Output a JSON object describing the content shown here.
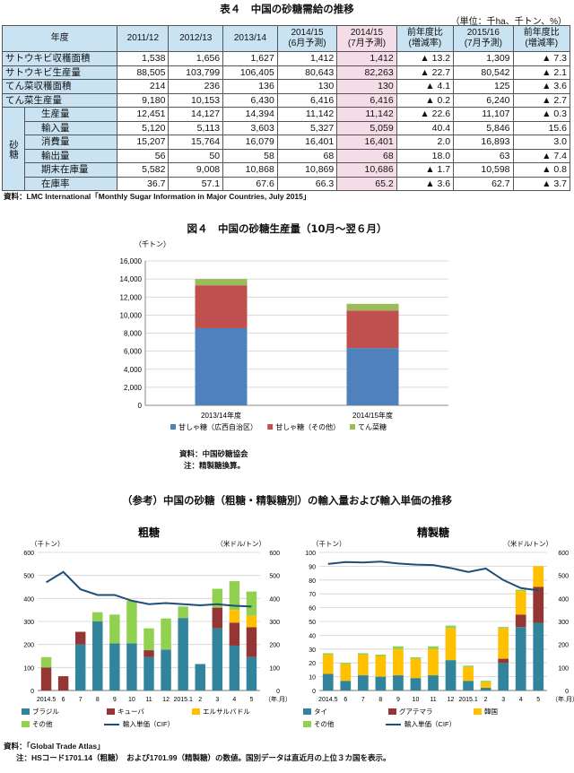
{
  "table": {
    "title": "表４　中国の砂糖需給の推移",
    "unit": "（単位：千ha、千トン、%）",
    "headers": [
      "年度",
      "2011/12",
      "2012/13",
      "2013/14",
      "2014/15\n(6月予測)",
      "2014/15\n(7月予測)",
      "前年度比\n(増減率)",
      "2015/16\n(7月予測)",
      "前年度比\n(増減率)"
    ],
    "group_label": "砂糖",
    "rows": [
      {
        "label": "サトウキビ収穫面積",
        "values": [
          "1,538",
          "1,656",
          "1,627",
          "1,412",
          "1,412",
          "▲ 13.2",
          "1,309",
          "▲ 7.3"
        ]
      },
      {
        "label": "サトウキビ生産量",
        "values": [
          "88,505",
          "103,799",
          "106,405",
          "80,643",
          "82,263",
          "▲ 22.7",
          "80,542",
          "▲ 2.1"
        ]
      },
      {
        "label": "てん菜収穫面積",
        "values": [
          "214",
          "236",
          "136",
          "130",
          "130",
          "▲ 4.1",
          "125",
          "▲ 3.6"
        ]
      },
      {
        "label": "てん菜生産量",
        "values": [
          "9,180",
          "10,153",
          "6,430",
          "6,416",
          "6,416",
          "▲ 0.2",
          "6,240",
          "▲ 2.7"
        ]
      },
      {
        "label": "生産量",
        "values": [
          "12,451",
          "14,127",
          "14,394",
          "11,142",
          "11,142",
          "▲ 22.6",
          "11,107",
          "▲ 0.3"
        ]
      },
      {
        "label": "輸入量",
        "values": [
          "5,120",
          "5,113",
          "3,603",
          "5,327",
          "5,059",
          "40.4",
          "5,846",
          "15.6"
        ]
      },
      {
        "label": "消費量",
        "values": [
          "15,207",
          "15,764",
          "16,079",
          "16,401",
          "16,401",
          "2.0",
          "16,893",
          "3.0"
        ]
      },
      {
        "label": "輸出量",
        "values": [
          "56",
          "50",
          "58",
          "68",
          "68",
          "18.0",
          "63",
          "▲ 7.4"
        ]
      },
      {
        "label": "期末在庫量",
        "values": [
          "5,582",
          "9,008",
          "10,868",
          "10,869",
          "10,686",
          "▲ 1.7",
          "10,598",
          "▲ 0.8"
        ]
      },
      {
        "label": "在庫率",
        "values": [
          "36.7",
          "57.1",
          "67.6",
          "66.3",
          "65.2",
          "▲ 3.6",
          "62.7",
          "▲ 3.7"
        ]
      }
    ],
    "source": "資料：LMC International「Monthly Sugar Information in Major Countries, July 2015」"
  },
  "fig4": {
    "title": "図４　中国の砂糖生産量（10月～翌６月）",
    "source_line1": "資料：中国砂糖協会",
    "source_line2": "注：精製糖換算。"
  },
  "reference": {
    "title": "（参考）中国の砂糖（粗糖・精製糖別）の輸入量および輸入単価の推移",
    "source_line1": "資料：「Global Trade Atlas」",
    "source_line2": "注：HSコード1701.14（粗糖）　および1701.99（精製糖）の数値。国別データは直近月の上位３カ国を表示。"
  },
  "chart_data": [
    {
      "type": "bar",
      "stacked": true,
      "title": "",
      "unit_label": "（千トン）",
      "categories": [
        "2013/14年度",
        "2014/15年度"
      ],
      "ylim": [
        0,
        16000
      ],
      "yticks": [
        0,
        2000,
        4000,
        6000,
        8000,
        10000,
        12000,
        14000,
        16000
      ],
      "series": [
        {
          "name": "甘しゃ糖（広西自治区）",
          "color": "#4f81bd",
          "values": [
            8550,
            6350
          ]
        },
        {
          "name": "甘しゃ糖（その他）",
          "color": "#c0504d",
          "values": [
            4750,
            4150
          ]
        },
        {
          "name": "てん菜糖",
          "color": "#9bbb59",
          "values": [
            700,
            750
          ]
        }
      ],
      "legend": "bottom"
    },
    {
      "type": "bar",
      "stacked": true,
      "title": "粗糖",
      "left_unit": "（千トン）",
      "right_unit": "（米ドル/トン）",
      "x_suffix": "（年.月）",
      "categories": [
        "2014.5",
        "6",
        "7",
        "8",
        "9",
        "10",
        "11",
        "12",
        "2015.1",
        "2",
        "3",
        "4",
        "5"
      ],
      "ylim": [
        0,
        600
      ],
      "yticks": [
        0,
        100,
        200,
        300,
        400,
        500,
        600
      ],
      "y2lim": [
        0,
        600
      ],
      "y2ticks": [
        0,
        100,
        200,
        300,
        400,
        500,
        600
      ],
      "series": [
        {
          "name": "ブラジル",
          "color": "#31849b",
          "values": [
            0,
            0,
            200,
            300,
            205,
            205,
            145,
            178,
            315,
            115,
            270,
            195,
            145
          ]
        },
        {
          "name": "キューバ",
          "color": "#943634",
          "values": [
            100,
            62,
            55,
            0,
            0,
            0,
            30,
            0,
            0,
            0,
            90,
            100,
            130
          ]
        },
        {
          "name": "エルサルバドル",
          "color": "#ffc000",
          "values": [
            0,
            0,
            0,
            0,
            0,
            0,
            0,
            0,
            0,
            0,
            0,
            55,
            50
          ]
        },
        {
          "name": "その他",
          "color": "#92d050",
          "values": [
            45,
            0,
            0,
            40,
            125,
            185,
            95,
            135,
            50,
            0,
            82,
            125,
            105
          ]
        }
      ],
      "line": {
        "name": "輸入単価（CIF）",
        "color": "#1f4e79",
        "values": [
          470,
          515,
          440,
          415,
          415,
          390,
          375,
          380,
          375,
          370,
          375,
          368,
          365
        ]
      },
      "legend": "bottom"
    },
    {
      "type": "bar",
      "stacked": true,
      "title": "精製糖",
      "left_unit": "（千トン）",
      "right_unit": "（米ドル/トン）",
      "x_suffix": "（年.月）",
      "categories": [
        "2014.5",
        "6",
        "7",
        "8",
        "9",
        "10",
        "11",
        "12",
        "2015.1",
        "2",
        "3",
        "4",
        "5"
      ],
      "ylim": [
        0,
        100
      ],
      "yticks": [
        0,
        10,
        20,
        30,
        40,
        50,
        60,
        70,
        80,
        90,
        100
      ],
      "y2lim": [
        0,
        600
      ],
      "y2ticks": [
        0,
        100,
        200,
        300,
        400,
        500,
        600
      ],
      "series": [
        {
          "name": "タイ",
          "color": "#31849b",
          "values": [
            12,
            7,
            11,
            10,
            11,
            9,
            11,
            22,
            7,
            2,
            20,
            46,
            49
          ]
        },
        {
          "name": "グアテマラ",
          "color": "#943634",
          "values": [
            0,
            0,
            0,
            0,
            0,
            0,
            0,
            0,
            0,
            0,
            3,
            9,
            26
          ]
        },
        {
          "name": "韓国",
          "color": "#ffc000",
          "values": [
            14,
            12,
            15,
            15,
            19,
            14,
            19,
            23,
            10,
            4,
            22,
            17,
            15
          ]
        },
        {
          "name": "その他",
          "color": "#92d050",
          "values": [
            1,
            1,
            1,
            1,
            2,
            1,
            2,
            2,
            1,
            1,
            1,
            1,
            0
          ]
        }
      ],
      "line": {
        "name": "輸入単価（CIF）",
        "color": "#1f4e79",
        "values": [
          550,
          558,
          556,
          560,
          552,
          547,
          545,
          532,
          515,
          530,
          480,
          445,
          435
        ]
      },
      "legend": "bottom"
    }
  ]
}
